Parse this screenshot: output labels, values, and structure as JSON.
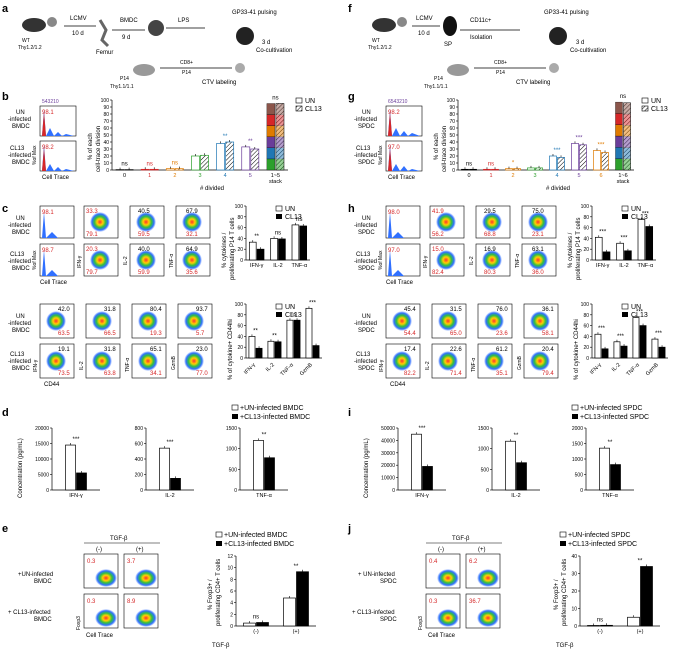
{
  "panel_letters": [
    "a",
    "b",
    "c",
    "d",
    "e",
    "f",
    "g",
    "h",
    "i",
    "j"
  ],
  "left": {
    "schematic": {
      "wt": "WT",
      "wt_thy": "Thy1.2/1.2",
      "infection": "LCMV",
      "infection_days": "10 d",
      "tissue": "Femur",
      "culture": "BMDC",
      "culture_days": "9 d",
      "stim": "LPS",
      "pulse": "GP33-41 pulsing",
      "co_days": "3 d",
      "co_label": "Co-cultivation",
      "p14": "P14",
      "p14_thy": "Thy1.1/1.1",
      "cd8": "CD8+",
      "cd8_sub": "P14",
      "ctv": "CTV labeling"
    },
    "b": {
      "hist_numbers": "543210",
      "row1_top": "UN",
      "row1_mid": "-infected",
      "row1_bot": "BMDC",
      "row2_top": "CL13",
      "row2_mid": "-infected",
      "row2_bot": "BMDC",
      "pct1": "98.1",
      "pct2": "98.2",
      "y_label": "%of Max",
      "x_label": "Cell Trace",
      "chart_ylabel1": "% of each",
      "chart_ylabel2": "cell-trace division",
      "chart_xlabel": "# divided",
      "legend_un": "UN",
      "legend_cl13": "CL13",
      "stack_label": "1~5",
      "stack_label2": "stack"
    },
    "c": {
      "hist_pct1": "98.1",
      "hist_pct2": "98.7",
      "row1_top": "UN",
      "row1_mid": "-infected",
      "row1_bot": "BMDC",
      "row2_top": "CL13",
      "row2_mid": "-infected",
      "row2_bot": "BMDC",
      "hist_ylabel": "%of Max",
      "hist_xlabel": "Cell Trace",
      "flow_r1": [
        "33.3",
        "79.1",
        "40.5",
        "59.5",
        "67.9",
        "32.1"
      ],
      "flow_r2": [
        "20.3",
        "79.7",
        "40.0",
        "59.9",
        "64.9",
        "35.6"
      ],
      "yl1": "IFN-γ",
      "yl2": "IL-2",
      "yl3": "TNF-α",
      "chart_ylabel1": "% cytokines /",
      "chart_ylabel2": "proliferating P14 T cells",
      "legend_un": "UN",
      "legend_cl13": "CL13",
      "lower_r1": [
        "42.0",
        "63.5",
        "31.8",
        "66.5",
        "80.4",
        "19.3",
        "93.7",
        "5.7"
      ],
      "lower_r2": [
        "19.1",
        "73.5",
        "31.8",
        "63.8",
        "65.1",
        "34.1",
        "23.0",
        "77.0"
      ],
      "lower_y": [
        "IFN-γ",
        "IL-2",
        "TNF-α",
        "GzmB"
      ],
      "cd44": "CD44",
      "chart2_ylabel": "% of cytokine+ CD44hi"
    },
    "d": {
      "ylabel": "Concentration (pg/mL)",
      "legend1": "+UN-infected BMDC",
      "legend2": "+CL13-infected BMDC"
    },
    "e": {
      "tgf": "TGF-β",
      "minus": "(-)",
      "plus": "(+)",
      "row1": "+UN-infected",
      "row1b": "BMDC",
      "row2": "+ CL13-infected",
      "row2b": "BMDC",
      "pct": [
        "0.3",
        "3.7",
        "0.3",
        "8.9"
      ],
      "foxp3": "Foxp3",
      "cell_trace": "Cell Trace",
      "legend1": "+UN-infected BMDC",
      "legend2": "+CL13-infected BMDC",
      "ylabel1": "% Foxp3+ /",
      "ylabel2": "proliferating CD4+ T cells",
      "xlabel": "TGF-β"
    }
  },
  "right": {
    "schematic": {
      "wt": "WT",
      "wt_thy": "Thy1.2/1.2",
      "infection": "LCMV",
      "infection_days": "10 d",
      "tissue": "SP",
      "isolation": "CD11c+",
      "isolation_label": "Isolation",
      "pulse": "GP33-41 pulsing",
      "co_days": "3 d",
      "co_label": "Co-cultivation",
      "p14": "P14",
      "p14_thy": "Thy1.1/1.1",
      "cd8": "CD8+",
      "cd8_sub": "P14",
      "ctv": "CTV labeling"
    },
    "g": {
      "hist_numbers": "6543210",
      "row1_top": "UN",
      "row1_mid": "-infected",
      "row1_bot": "SPDC",
      "row2_top": "CL13",
      "row2_mid": "-infected",
      "row2_bot": "SPDC",
      "pct1": "98.2",
      "pct2": "97.0",
      "y_label": "%of Max",
      "x_label": "Cell Trace",
      "chart_ylabel1": "% of each",
      "chart_ylabel2": "cell-trace division",
      "chart_xlabel": "# divided",
      "legend_un": "UN",
      "legend_cl13": "CL13",
      "stack_label": "1~6",
      "stack_label2": "stack"
    },
    "h": {
      "hist_pct1": "98.0",
      "hist_pct2": "97.0",
      "row1_top": "UN",
      "row1_mid": "-infected",
      "row1_bot": "SPDC",
      "row2_top": "CL13",
      "row2_mid": "-infected",
      "row2_bot": "SPDC",
      "hist_ylabel": "%of Max",
      "hist_xlabel": "Cell Trace",
      "flow_r1": [
        "41.9",
        "56.2",
        "29.5",
        "68.8",
        "75.0",
        "23.1"
      ],
      "flow_r2": [
        "15.0",
        "82.4",
        "16.9",
        "80.3",
        "63.1",
        "36.0"
      ],
      "yl1": "IFN-γ",
      "yl2": "IL-2",
      "yl3": "TNF-α",
      "chart_ylabel1": "% cytokines /",
      "chart_ylabel2": "proliferating P14 T cells",
      "legend_un": "UN",
      "legend_cl13": "CL13",
      "lower_r1": [
        "45.4",
        "54.4",
        "31.5",
        "65.0",
        "76.0",
        "23.6",
        "36.1",
        "58.1"
      ],
      "lower_r2": [
        "17.4",
        "82.2",
        "22.6",
        "71.4",
        "61.2",
        "35.1",
        "20.4",
        "79.4"
      ],
      "lower_y": [
        "IFN-γ",
        "IL-2",
        "TNF-α",
        "GzmB"
      ],
      "cd44": "CD44",
      "chart2_ylabel": "% of cytokine+ CD44hi"
    },
    "i": {
      "ylabel": "Concentration (pg/mL)",
      "legend1": "+UN-infected SPDC",
      "legend2": "+CL13-infected SPDC"
    },
    "j": {
      "tgf": "TGF-β",
      "minus": "(-)",
      "plus": "(+)",
      "row1": "+ UN-infected",
      "row1b": "SPDC",
      "row2": "+ CL13-infected",
      "row2b": "SPDC",
      "pct": [
        "0.4",
        "6.2",
        "0.3",
        "36.7"
      ],
      "foxp3": "Foxp3",
      "cell_trace": "Cell Trace",
      "legend1": "+UN-infected SPDC",
      "legend2": "+CL13-infected SPDC",
      "ylabel1": "% Foxp3+ /",
      "ylabel2": "proliferating CD4+ T cells",
      "xlabel": "TGF-β"
    }
  },
  "chart_data": [
    {
      "id": "b-chart",
      "type": "bar",
      "categories": [
        "0",
        "1",
        "2",
        "3",
        "4",
        "5",
        "1~5 stack"
      ],
      "series": [
        {
          "name": "UN",
          "values": [
            0.5,
            1,
            2,
            20,
            38,
            33,
            95
          ]
        },
        {
          "name": "CL13",
          "values": [
            0.5,
            1,
            2,
            21,
            40,
            30,
            95
          ]
        }
      ],
      "ylim": [
        0,
        100
      ],
      "yticks": [
        0,
        10,
        20,
        30,
        40,
        50,
        60,
        70,
        80,
        90,
        100
      ],
      "sig": [
        "ns",
        "ns",
        "ns",
        "",
        "**",
        "**",
        "ns"
      ],
      "sig_colors": [
        "#000",
        "#d62728",
        "#e07b00",
        "#2ca02c",
        "#1f77b4",
        "#6a3d9a",
        "#000"
      ]
    },
    {
      "id": "g-chart",
      "type": "bar",
      "categories": [
        "0",
        "1",
        "2",
        "3",
        "4",
        "5",
        "6",
        "1~6 stack"
      ],
      "series": [
        {
          "name": "UN",
          "values": [
            1,
            1,
            2,
            3,
            20,
            38,
            28,
            97
          ]
        },
        {
          "name": "CL13",
          "values": [
            1,
            1,
            2,
            3,
            18,
            36,
            25,
            96
          ]
        }
      ],
      "ylim": [
        0,
        100
      ],
      "yticks": [
        0,
        10,
        20,
        30,
        40,
        50,
        60,
        70,
        80,
        90,
        100
      ],
      "sig": [
        "ns",
        "ns",
        "*",
        "",
        "***",
        "***",
        "***",
        "ns"
      ],
      "sig_colors": [
        "#000",
        "#d62728",
        "#e07b00",
        "#2ca02c",
        "#1f77b4",
        "#6a3d9a",
        "#e07b00",
        "#000"
      ]
    },
    {
      "id": "c-chart-top",
      "type": "bar",
      "categories": [
        "IFN-γ",
        "IL-2",
        "TNF-α"
      ],
      "series": [
        {
          "name": "UN",
          "values": [
            33,
            40,
            65
          ]
        },
        {
          "name": "CL13",
          "values": [
            20,
            39,
            63
          ]
        }
      ],
      "ylim": [
        0,
        100
      ],
      "yticks": [
        0,
        20,
        40,
        60,
        80,
        100
      ],
      "sig": [
        "**",
        "ns",
        "ns"
      ]
    },
    {
      "id": "c-chart-bottom",
      "type": "bar",
      "categories": [
        "IFN-γ",
        "IL-2",
        "TNF-α",
        "GzmB"
      ],
      "series": [
        {
          "name": "UN",
          "values": [
            40,
            31,
            70,
            92
          ]
        },
        {
          "name": "CL13",
          "values": [
            18,
            30,
            70,
            23
          ]
        }
      ],
      "ylim": [
        0,
        100
      ],
      "yticks": [
        0,
        20,
        40,
        60,
        80,
        100
      ],
      "sig": [
        "**",
        "**",
        "ns",
        "***"
      ]
    },
    {
      "id": "h-chart-top",
      "type": "bar",
      "categories": [
        "IFN-γ",
        "IL-2",
        "TNF-α"
      ],
      "series": [
        {
          "name": "UN",
          "values": [
            42,
            31,
            75
          ]
        },
        {
          "name": "CL13",
          "values": [
            15,
            17,
            62
          ]
        }
      ],
      "ylim": [
        0,
        100
      ],
      "yticks": [
        0,
        20,
        40,
        60,
        80,
        100
      ],
      "sig": [
        "***",
        "***",
        "***"
      ]
    },
    {
      "id": "h-chart-bottom",
      "type": "bar",
      "categories": [
        "IFN-γ",
        "IL-2",
        "TNF-α",
        "GzmB"
      ],
      "series": [
        {
          "name": "UN",
          "values": [
            44,
            30,
            75,
            35
          ]
        },
        {
          "name": "CL13",
          "values": [
            17,
            22,
            60,
            20
          ]
        }
      ],
      "ylim": [
        0,
        100
      ],
      "yticks": [
        0,
        20,
        40,
        60,
        80,
        100
      ],
      "sig": [
        "***",
        "***",
        "***",
        "***"
      ]
    },
    {
      "id": "d-ifn",
      "type": "bar",
      "categories": [
        "IFN-γ"
      ],
      "series": [
        {
          "name": "+UN-infected BMDC",
          "values": [
            14500
          ]
        },
        {
          "name": "+CL13-infected BMDC",
          "values": [
            5500
          ]
        }
      ],
      "ylim": [
        0,
        20000
      ],
      "yticks": [
        0,
        5000,
        10000,
        15000,
        20000
      ],
      "sig": [
        "***"
      ]
    },
    {
      "id": "d-il2",
      "type": "bar",
      "categories": [
        "IL-2"
      ],
      "series": [
        {
          "name": "+UN-infected BMDC",
          "values": [
            540
          ]
        },
        {
          "name": "+CL13-infected BMDC",
          "values": [
            150
          ]
        }
      ],
      "ylim": [
        0,
        800
      ],
      "yticks": [
        0,
        200,
        400,
        600,
        800
      ],
      "sig": [
        "***"
      ]
    },
    {
      "id": "d-tnf",
      "type": "bar",
      "categories": [
        "TNF-α"
      ],
      "series": [
        {
          "name": "+UN-infected BMDC",
          "values": [
            1200
          ]
        },
        {
          "name": "+CL13-infected BMDC",
          "values": [
            780
          ]
        }
      ],
      "ylim": [
        0,
        1500
      ],
      "yticks": [
        0,
        500,
        1000,
        1500
      ],
      "sig": [
        "**"
      ]
    },
    {
      "id": "i-ifn",
      "type": "bar",
      "categories": [
        "IFN-γ"
      ],
      "series": [
        {
          "name": "+UN-infected SPDC",
          "values": [
            45000
          ]
        },
        {
          "name": "+CL13-infected SPDC",
          "values": [
            19000
          ]
        }
      ],
      "ylim": [
        0,
        50000
      ],
      "yticks": [
        0,
        10000,
        20000,
        30000,
        40000,
        50000
      ],
      "sig": [
        "***"
      ]
    },
    {
      "id": "i-il2",
      "type": "bar",
      "categories": [
        "IL-2"
      ],
      "series": [
        {
          "name": "+UN-infected SPDC",
          "values": [
            1180
          ]
        },
        {
          "name": "+CL13-infected SPDC",
          "values": [
            660
          ]
        }
      ],
      "ylim": [
        0,
        1500
      ],
      "yticks": [
        0,
        500,
        1000,
        1500
      ],
      "sig": [
        "**"
      ]
    },
    {
      "id": "i-tnf",
      "type": "bar",
      "categories": [
        "TNF-α"
      ],
      "series": [
        {
          "name": "+UN-infected SPDC",
          "values": [
            1350
          ]
        },
        {
          "name": "+CL13-infected SPDC",
          "values": [
            820
          ]
        }
      ],
      "ylim": [
        0,
        2000
      ],
      "yticks": [
        0,
        500,
        1000,
        1500,
        2000
      ],
      "sig": [
        "**"
      ]
    },
    {
      "id": "e-chart",
      "type": "bar",
      "categories": [
        "(-)",
        "(+)"
      ],
      "series": [
        {
          "name": "+UN-infected BMDC",
          "values": [
            0.5,
            4.8
          ]
        },
        {
          "name": "+CL13-infected BMDC",
          "values": [
            0.6,
            9.3
          ]
        }
      ],
      "ylim": [
        0,
        12
      ],
      "yticks": [
        0,
        2,
        4,
        6,
        8,
        10,
        12
      ],
      "sig": [
        "ns",
        "**"
      ]
    },
    {
      "id": "j-chart",
      "type": "bar",
      "categories": [
        "(-)",
        "(+)"
      ],
      "series": [
        {
          "name": "+UN-infected SPDC",
          "values": [
            0.3,
            5
          ]
        },
        {
          "name": "+CL13-infected SPDC",
          "values": [
            0.4,
            34
          ]
        }
      ],
      "ylim": [
        0,
        40
      ],
      "yticks": [
        0,
        10,
        20,
        30,
        40
      ],
      "sig": [
        "ns",
        "**"
      ]
    }
  ]
}
